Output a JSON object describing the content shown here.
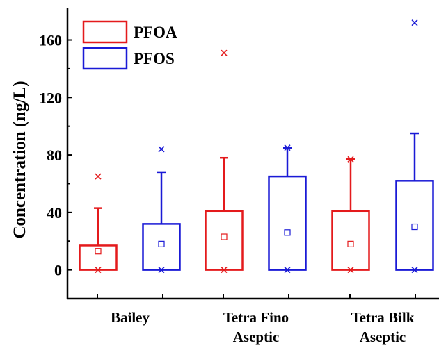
{
  "chart_data": {
    "type": "box",
    "title": "",
    "ylabel": "Concentration (ng/L)",
    "xlabel": "",
    "ylim": [
      -20,
      182
    ],
    "yticks": [
      0,
      40,
      80,
      120,
      160
    ],
    "grid": false,
    "legend_position": "top-left",
    "categories": [
      {
        "lines": [
          "Bailey"
        ]
      },
      {
        "lines": [
          "Tetra Fino",
          "Aseptic"
        ]
      },
      {
        "lines": [
          "Tetra Bilk",
          "Aseptic"
        ]
      }
    ],
    "series": [
      {
        "name": "PFOA",
        "color": "#e41a1c",
        "boxes": [
          {
            "category": 0,
            "q1": 0,
            "q3": 17,
            "whisker_low": 0,
            "whisker_high": 43,
            "mean": 13,
            "min": 0,
            "max": 65
          },
          {
            "category": 1,
            "q1": 0,
            "q3": 41,
            "whisker_low": 0,
            "whisker_high": 78,
            "mean": 23,
            "min": 0,
            "max": 151
          },
          {
            "category": 2,
            "q1": 0,
            "q3": 41,
            "whisker_low": 0,
            "whisker_high": 77,
            "mean": 18,
            "min": 0,
            "max": 77
          }
        ]
      },
      {
        "name": "PFOS",
        "color": "#1a1ad6",
        "boxes": [
          {
            "category": 0,
            "q1": 0,
            "q3": 32,
            "whisker_low": 0,
            "whisker_high": 68,
            "mean": 18,
            "min": 0,
            "max": 84
          },
          {
            "category": 1,
            "q1": 0,
            "q3": 65,
            "whisker_low": 0,
            "whisker_high": 85,
            "mean": 26,
            "min": 0,
            "max": 85
          },
          {
            "category": 2,
            "q1": 0,
            "q3": 62,
            "whisker_low": 0,
            "whisker_high": 95,
            "mean": 30,
            "min": 0,
            "max": 172
          }
        ]
      }
    ]
  }
}
